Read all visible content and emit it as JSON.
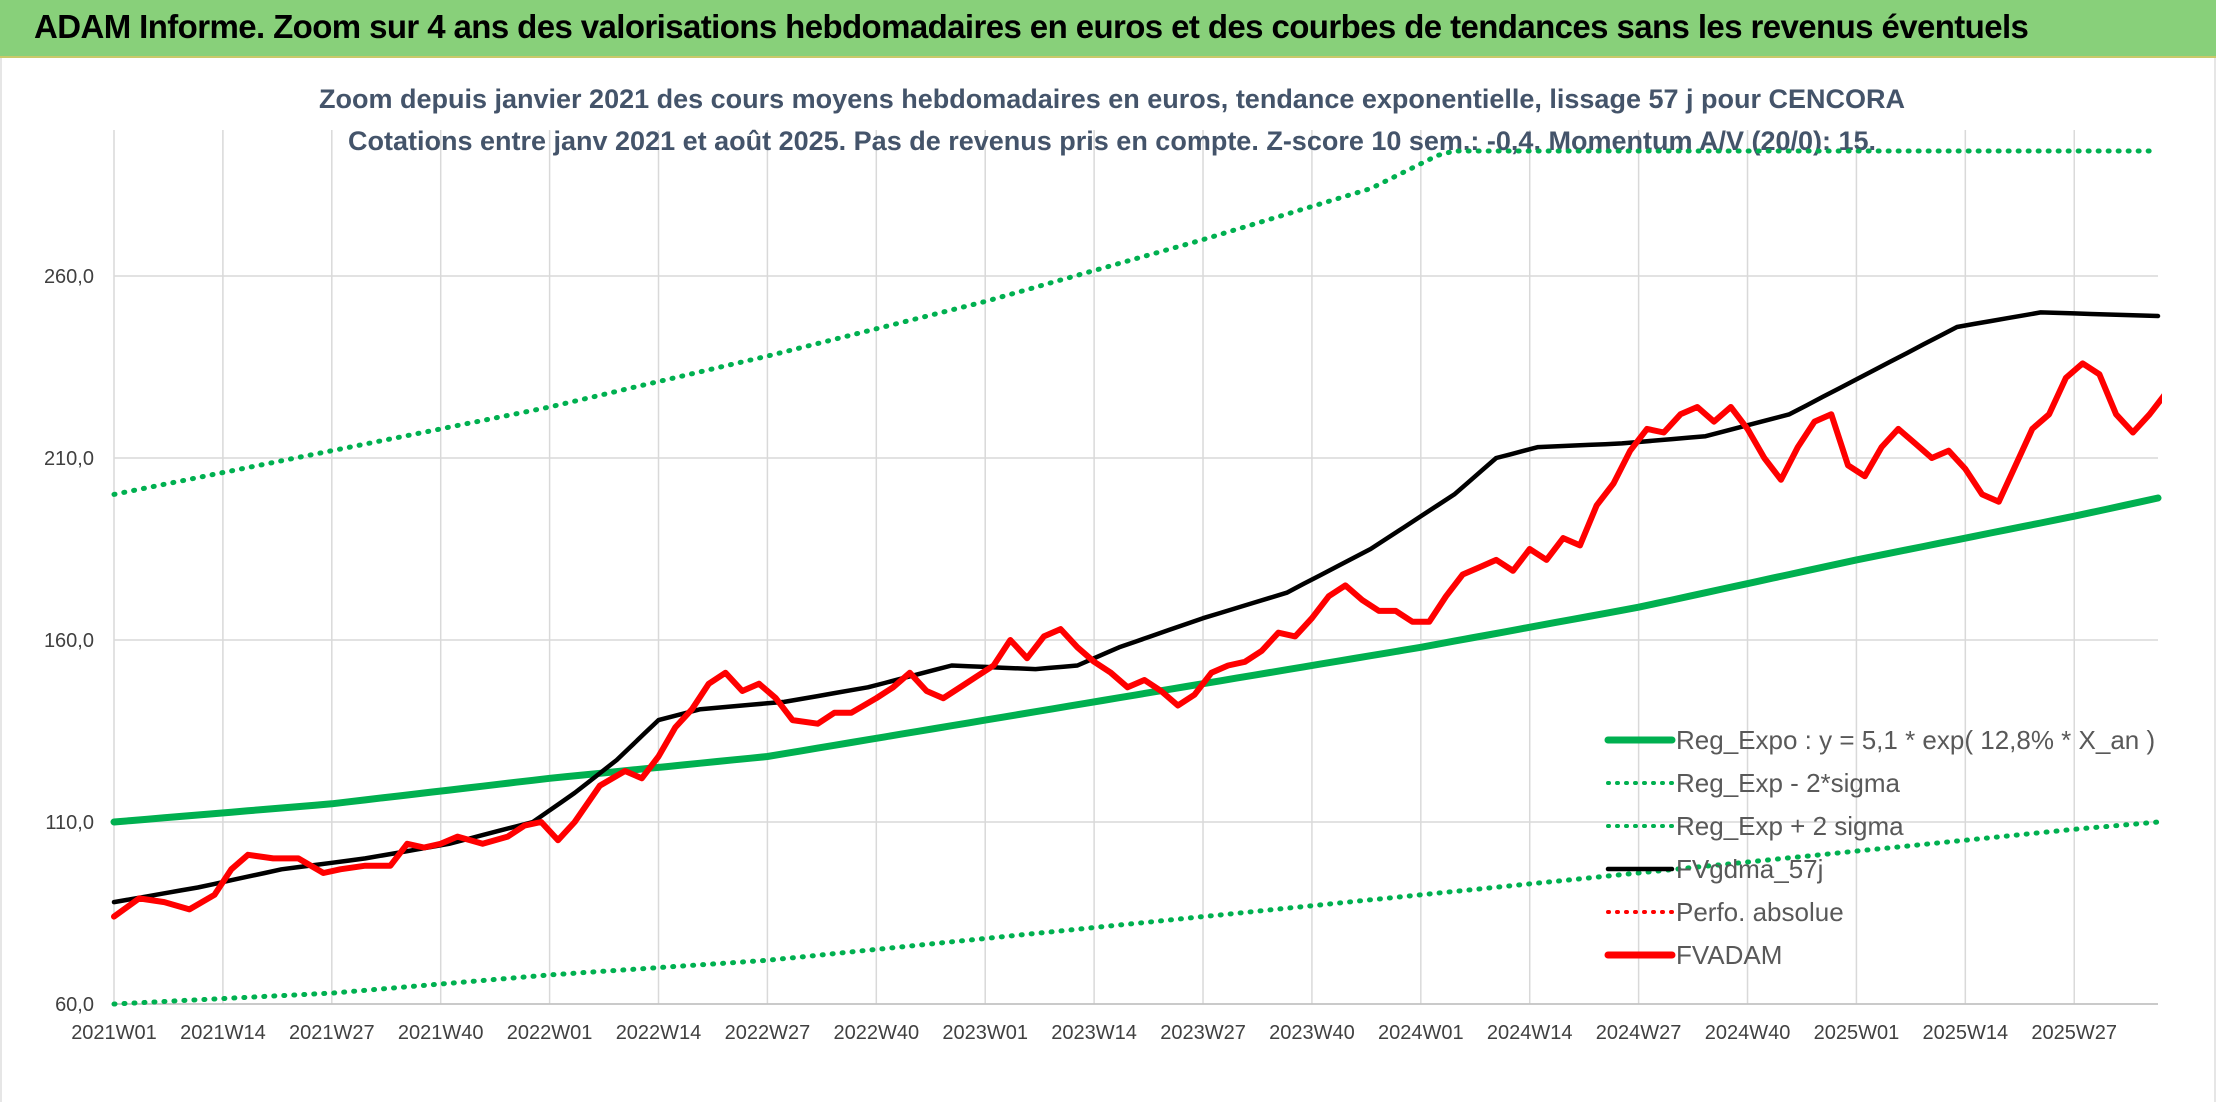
{
  "header": {
    "title": "ADAM Informe. Zoom sur 4 ans des valorisations hebdomadaires en euros et des courbes de tendances sans les revenus éventuels"
  },
  "chart_data": {
    "type": "line",
    "title": "Zoom depuis janvier 2021 des cours moyens hebdomadaires en euros, tendance exponentielle, lissage 57 j pour CENCORA",
    "subtitle": "Cotations entre janv 2021 et août 2025. Pas de revenus pris en compte. Z-score 10 sem.: -0,4. Momentum A/V (20/0): 15.",
    "xlabel": "",
    "ylabel": "",
    "ylim": [
      60,
      290
    ],
    "yticks": [
      "60,0",
      "110,0",
      "160,0",
      "210,0",
      "260,0"
    ],
    "xticks": [
      "2021W01",
      "2021W14",
      "2021W27",
      "2021W40",
      "2022W01",
      "2022W14",
      "2022W27",
      "2022W40",
      "2023W01",
      "2023W14",
      "2023W27",
      "2023W40",
      "2024W01",
      "2024W14",
      "2024W27",
      "2024W40",
      "2025W01",
      "2025W14",
      "2025W27"
    ],
    "grid": true,
    "legend_position": "bottom-right",
    "legend": [
      {
        "label": "Reg_Expo : y = 5,1 * exp( 12,8% *  X_an )",
        "color": "#00b050",
        "style": "solid"
      },
      {
        "label": "Reg_Exp - 2*sigma",
        "color": "#00b050",
        "style": "dotted"
      },
      {
        "label": "Reg_Exp + 2 sigma",
        "color": "#00b050",
        "style": "dotted"
      },
      {
        "label": "FVgdma_57j",
        "color": "#000000",
        "style": "solid"
      },
      {
        "label": "Perfo. absolue",
        "color": "#ff0000",
        "style": "dotted"
      },
      {
        "label": "FVADAM",
        "color": "#ff0000",
        "style": "solid-thick"
      }
    ],
    "n_weeks": 245,
    "series": [
      {
        "name": "Reg_Expo : y = 5,1 * exp( 12,8% *  X_an )",
        "color": "#00b050",
        "points": [
          [
            0,
            110
          ],
          [
            26,
            115
          ],
          [
            52,
            122
          ],
          [
            78,
            128
          ],
          [
            104,
            138
          ],
          [
            130,
            148
          ],
          [
            156,
            158
          ],
          [
            182,
            169
          ],
          [
            208,
            182
          ],
          [
            234,
            194
          ],
          [
            244,
            199
          ]
        ]
      },
      {
        "name": "Reg_Exp - 2*sigma",
        "color": "#00b050",
        "points": [
          [
            0,
            60
          ],
          [
            26,
            63
          ],
          [
            52,
            68
          ],
          [
            78,
            72
          ],
          [
            104,
            78
          ],
          [
            130,
            84
          ],
          [
            156,
            90
          ],
          [
            182,
            96
          ],
          [
            208,
            102
          ],
          [
            234,
            108
          ],
          [
            244,
            110
          ]
        ]
      },
      {
        "name": "Reg_Exp + 2 sigma",
        "color": "#00b050",
        "points": [
          [
            0,
            200
          ],
          [
            26,
            212
          ],
          [
            52,
            224
          ],
          [
            78,
            238
          ],
          [
            104,
            253
          ],
          [
            130,
            270
          ],
          [
            150,
            284
          ],
          [
            164,
            300
          ],
          [
            170,
            300
          ],
          [
            244,
            300
          ]
        ]
      },
      {
        "name": "FVgdma_57j",
        "color": "#000000",
        "points": [
          [
            0,
            88
          ],
          [
            10,
            92
          ],
          [
            20,
            97
          ],
          [
            30,
            100
          ],
          [
            40,
            104
          ],
          [
            50,
            110
          ],
          [
            55,
            118
          ],
          [
            60,
            127
          ],
          [
            65,
            138
          ],
          [
            70,
            141
          ],
          [
            80,
            143
          ],
          [
            90,
            147
          ],
          [
            100,
            153
          ],
          [
            110,
            152
          ],
          [
            115,
            153
          ],
          [
            120,
            158
          ],
          [
            130,
            166
          ],
          [
            140,
            173
          ],
          [
            150,
            185
          ],
          [
            160,
            200
          ],
          [
            165,
            210
          ],
          [
            170,
            213
          ],
          [
            180,
            214
          ],
          [
            190,
            216
          ],
          [
            200,
            222
          ],
          [
            210,
            234
          ],
          [
            220,
            246
          ],
          [
            230,
            250
          ],
          [
            244,
            249
          ]
        ]
      },
      {
        "name": "FVADAM",
        "color": "#ff0000",
        "points": [
          [
            0,
            84
          ],
          [
            3,
            89
          ],
          [
            6,
            88
          ],
          [
            9,
            86
          ],
          [
            12,
            90
          ],
          [
            14,
            97
          ],
          [
            16,
            101
          ],
          [
            19,
            100
          ],
          [
            22,
            100
          ],
          [
            25,
            96
          ],
          [
            27,
            97
          ],
          [
            30,
            98
          ],
          [
            33,
            98
          ],
          [
            35,
            104
          ],
          [
            37,
            103
          ],
          [
            39,
            104
          ],
          [
            41,
            106
          ],
          [
            44,
            104
          ],
          [
            47,
            106
          ],
          [
            49,
            109
          ],
          [
            51,
            110
          ],
          [
            53,
            105
          ],
          [
            55,
            110
          ],
          [
            58,
            120
          ],
          [
            61,
            124
          ],
          [
            63,
            122
          ],
          [
            65,
            128
          ],
          [
            67,
            136
          ],
          [
            69,
            141
          ],
          [
            71,
            148
          ],
          [
            73,
            151
          ],
          [
            75,
            146
          ],
          [
            77,
            148
          ],
          [
            79,
            144
          ],
          [
            81,
            138
          ],
          [
            84,
            137
          ],
          [
            86,
            140
          ],
          [
            88,
            140
          ],
          [
            91,
            144
          ],
          [
            93,
            147
          ],
          [
            95,
            151
          ],
          [
            97,
            146
          ],
          [
            99,
            144
          ],
          [
            101,
            147
          ],
          [
            103,
            150
          ],
          [
            105,
            153
          ],
          [
            107,
            160
          ],
          [
            109,
            155
          ],
          [
            111,
            161
          ],
          [
            113,
            163
          ],
          [
            115,
            158
          ],
          [
            117,
            154
          ],
          [
            119,
            151
          ],
          [
            121,
            147
          ],
          [
            123,
            149
          ],
          [
            125,
            146
          ],
          [
            127,
            142
          ],
          [
            129,
            145
          ],
          [
            131,
            151
          ],
          [
            133,
            153
          ],
          [
            135,
            154
          ],
          [
            137,
            157
          ],
          [
            139,
            162
          ],
          [
            141,
            161
          ],
          [
            143,
            166
          ],
          [
            145,
            172
          ],
          [
            147,
            175
          ],
          [
            149,
            171
          ],
          [
            151,
            168
          ],
          [
            153,
            168
          ],
          [
            155,
            165
          ],
          [
            157,
            165
          ],
          [
            159,
            172
          ],
          [
            161,
            178
          ],
          [
            163,
            180
          ],
          [
            165,
            182
          ],
          [
            167,
            179
          ],
          [
            169,
            185
          ],
          [
            171,
            182
          ],
          [
            173,
            188
          ],
          [
            175,
            186
          ],
          [
            177,
            197
          ],
          [
            179,
            203
          ],
          [
            181,
            212
          ],
          [
            183,
            218
          ],
          [
            185,
            217
          ],
          [
            187,
            222
          ],
          [
            189,
            224
          ],
          [
            191,
            220
          ],
          [
            193,
            224
          ],
          [
            195,
            218
          ],
          [
            197,
            210
          ],
          [
            199,
            204
          ],
          [
            201,
            213
          ],
          [
            203,
            220
          ],
          [
            205,
            222
          ],
          [
            207,
            208
          ],
          [
            209,
            205
          ],
          [
            211,
            213
          ],
          [
            213,
            218
          ],
          [
            215,
            214
          ],
          [
            217,
            210
          ],
          [
            219,
            212
          ],
          [
            221,
            207
          ],
          [
            223,
            200
          ],
          [
            225,
            198
          ],
          [
            227,
            208
          ],
          [
            229,
            218
          ],
          [
            231,
            222
          ],
          [
            233,
            232
          ],
          [
            235,
            236
          ],
          [
            237,
            233
          ],
          [
            239,
            222
          ],
          [
            241,
            217
          ],
          [
            243,
            222
          ],
          [
            245,
            228
          ]
        ]
      }
    ]
  }
}
